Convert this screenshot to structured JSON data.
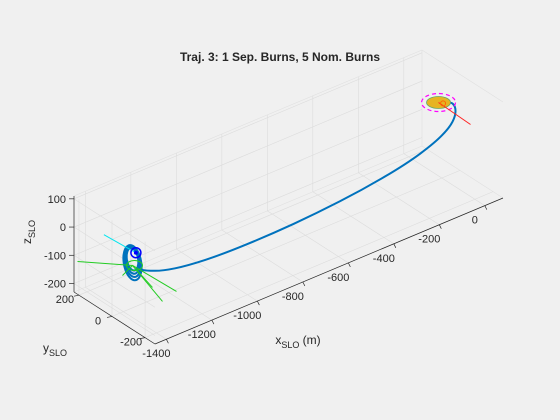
{
  "chart_data": {
    "type": "line",
    "projection": "3d",
    "title": "Traj. 3: 1 Sep. Burns, 5 Nom. Burns",
    "xlabel": {
      "main": "x",
      "sub": "SLO",
      "unit": " (m)"
    },
    "ylabel": {
      "main": "y",
      "sub": "SLO"
    },
    "zlabel": {
      "main": "z",
      "sub": "SLO"
    },
    "xlim": [
      -1450,
      80
    ],
    "ylim": [
      -260,
      230
    ],
    "zlim": [
      -230,
      110
    ],
    "xticks": [
      -1400,
      -1200,
      -1000,
      -800,
      -600,
      -400,
      -200,
      0
    ],
    "yticks": [
      -200,
      0,
      200
    ],
    "zticks": [
      -200,
      -100,
      0,
      100
    ],
    "grid": true,
    "colors": {
      "trajectory": "#0072bd",
      "sep_burns": "#00e5ee",
      "nom_burns": "#22cc22",
      "target_marker": "#0000ff",
      "start_marker": "#ff6600",
      "chief_arrow": "#ff2222",
      "chief_ellipse": "#ff00ff",
      "chief_body": "#e6b422"
    },
    "series": [
      {
        "kind": "transfer-arc",
        "points": [
          [
            20,
            20,
            20
          ],
          [
            60,
            30,
            10
          ],
          [
            75,
            20,
            -10
          ],
          [
            60,
            0,
            -30
          ],
          [
            20,
            -20,
            -50
          ],
          [
            -60,
            -40,
            -70
          ],
          [
            -200,
            -60,
            -90
          ],
          [
            -400,
            -70,
            -110
          ],
          [
            -600,
            -70,
            -125
          ],
          [
            -800,
            -65,
            -135
          ],
          [
            -1000,
            -55,
            -140
          ],
          [
            -1150,
            -45,
            -135
          ],
          [
            -1250,
            -30,
            -125
          ],
          [
            -1310,
            -15,
            -110
          ],
          [
            -1345,
            -5,
            -95
          ]
        ]
      },
      {
        "kind": "approach-loops",
        "center": [
          -1360,
          0,
          -70
        ],
        "radius": 40,
        "loops": 4
      }
    ]
  }
}
